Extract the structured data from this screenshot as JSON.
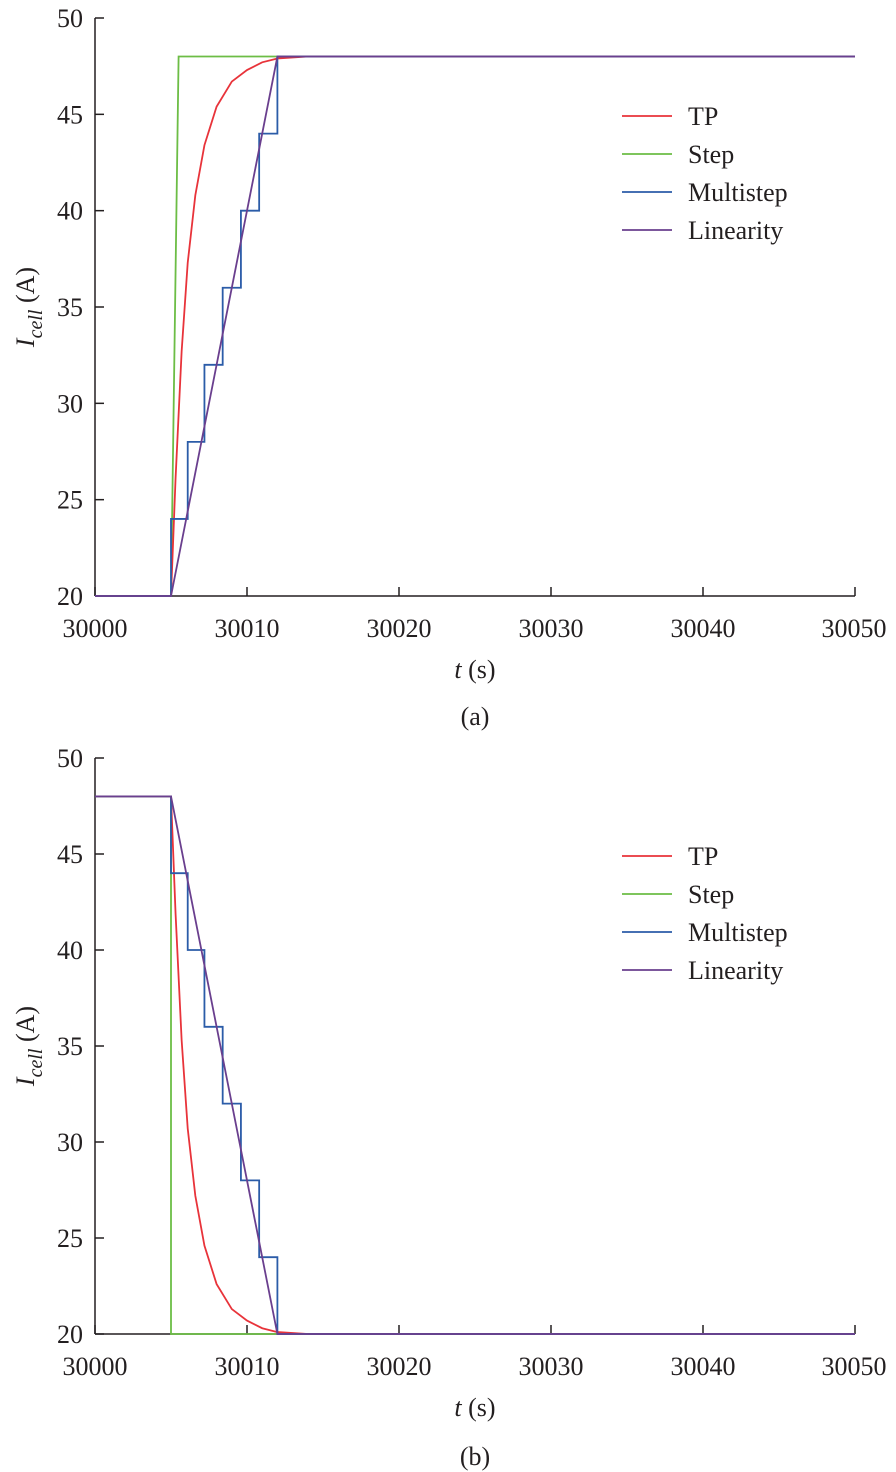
{
  "chart_data": [
    {
      "type": "line",
      "panel_label": "(a)",
      "xlabel": {
        "main": "t",
        "unit": " (s)"
      },
      "ylabel": {
        "main": "I",
        "sub": "cell",
        "unit": " (A)"
      },
      "xlim": [
        30000,
        30050
      ],
      "ylim": [
        20,
        50
      ],
      "xticks": [
        30000,
        30010,
        30020,
        30030,
        30040,
        30050
      ],
      "yticks": [
        20,
        25,
        30,
        35,
        40,
        45,
        50
      ],
      "legend_position": "top-right",
      "grid": false,
      "series": [
        {
          "name": "TP",
          "color": "#e8333a",
          "points": [
            [
              30000,
              20
            ],
            [
              30005,
              20
            ],
            [
              30005.3,
              26.1
            ],
            [
              30005.7,
              32.7
            ],
            [
              30006.1,
              37.3
            ],
            [
              30006.6,
              40.8
            ],
            [
              30007.2,
              43.4
            ],
            [
              30008,
              45.4
            ],
            [
              30009,
              46.7
            ],
            [
              30010,
              47.3
            ],
            [
              30011,
              47.7
            ],
            [
              30012,
              47.9
            ],
            [
              30014,
              48
            ],
            [
              30050,
              48
            ]
          ]
        },
        {
          "name": "Step",
          "color": "#6cbd45",
          "points": [
            [
              30000,
              20
            ],
            [
              30005,
              20
            ],
            [
              30005.5,
              48
            ],
            [
              30050,
              48
            ]
          ]
        },
        {
          "name": "Multistep",
          "color": "#2b5ca8",
          "points": [
            [
              30000,
              20
            ],
            [
              30005,
              20
            ],
            [
              30005,
              24
            ],
            [
              30006.1,
              24
            ],
            [
              30006.1,
              28
            ],
            [
              30007.2,
              28
            ],
            [
              30007.2,
              32
            ],
            [
              30008.4,
              32
            ],
            [
              30008.4,
              36
            ],
            [
              30009.6,
              36
            ],
            [
              30009.6,
              40
            ],
            [
              30010.8,
              40
            ],
            [
              30010.8,
              44
            ],
            [
              30012,
              44
            ],
            [
              30012,
              48
            ],
            [
              30050,
              48
            ]
          ]
        },
        {
          "name": "Linearity",
          "color": "#6a3f8e",
          "points": [
            [
              30000,
              20
            ],
            [
              30005,
              20
            ],
            [
              30012,
              48
            ],
            [
              30050,
              48
            ]
          ]
        }
      ]
    },
    {
      "type": "line",
      "panel_label": "(b)",
      "xlabel": {
        "main": "t",
        "unit": " (s)"
      },
      "ylabel": {
        "main": "I",
        "sub": "cell",
        "unit": " (A)"
      },
      "xlim": [
        30000,
        30050
      ],
      "ylim": [
        20,
        50
      ],
      "xticks": [
        30000,
        30010,
        30020,
        30030,
        30040,
        30050
      ],
      "yticks": [
        20,
        25,
        30,
        35,
        40,
        45,
        50
      ],
      "legend_position": "top-right",
      "grid": false,
      "series": [
        {
          "name": "TP",
          "color": "#e8333a",
          "points": [
            [
              30000,
              48
            ],
            [
              30005,
              48
            ],
            [
              30005.3,
              41.9
            ],
            [
              30005.7,
              35.3
            ],
            [
              30006.1,
              30.7
            ],
            [
              30006.6,
              27.2
            ],
            [
              30007.2,
              24.6
            ],
            [
              30008,
              22.6
            ],
            [
              30009,
              21.3
            ],
            [
              30010,
              20.7
            ],
            [
              30011,
              20.3
            ],
            [
              30012,
              20.1
            ],
            [
              30014,
              20
            ],
            [
              30050,
              20
            ]
          ]
        },
        {
          "name": "Step",
          "color": "#6cbd45",
          "points": [
            [
              30000,
              48
            ],
            [
              30005,
              48
            ],
            [
              30005,
              20
            ],
            [
              30050,
              20
            ]
          ]
        },
        {
          "name": "Multistep",
          "color": "#2b5ca8",
          "points": [
            [
              30000,
              48
            ],
            [
              30005,
              48
            ],
            [
              30005,
              44
            ],
            [
              30006.1,
              44
            ],
            [
              30006.1,
              40
            ],
            [
              30007.2,
              40
            ],
            [
              30007.2,
              36
            ],
            [
              30008.4,
              36
            ],
            [
              30008.4,
              32
            ],
            [
              30009.6,
              32
            ],
            [
              30009.6,
              28
            ],
            [
              30010.8,
              28
            ],
            [
              30010.8,
              24
            ],
            [
              30012,
              24
            ],
            [
              30012,
              20
            ],
            [
              30050,
              20
            ]
          ]
        },
        {
          "name": "Linearity",
          "color": "#6a3f8e",
          "points": [
            [
              30000,
              48
            ],
            [
              30005,
              48
            ],
            [
              30012,
              20
            ],
            [
              30050,
              20
            ]
          ]
        }
      ]
    }
  ]
}
